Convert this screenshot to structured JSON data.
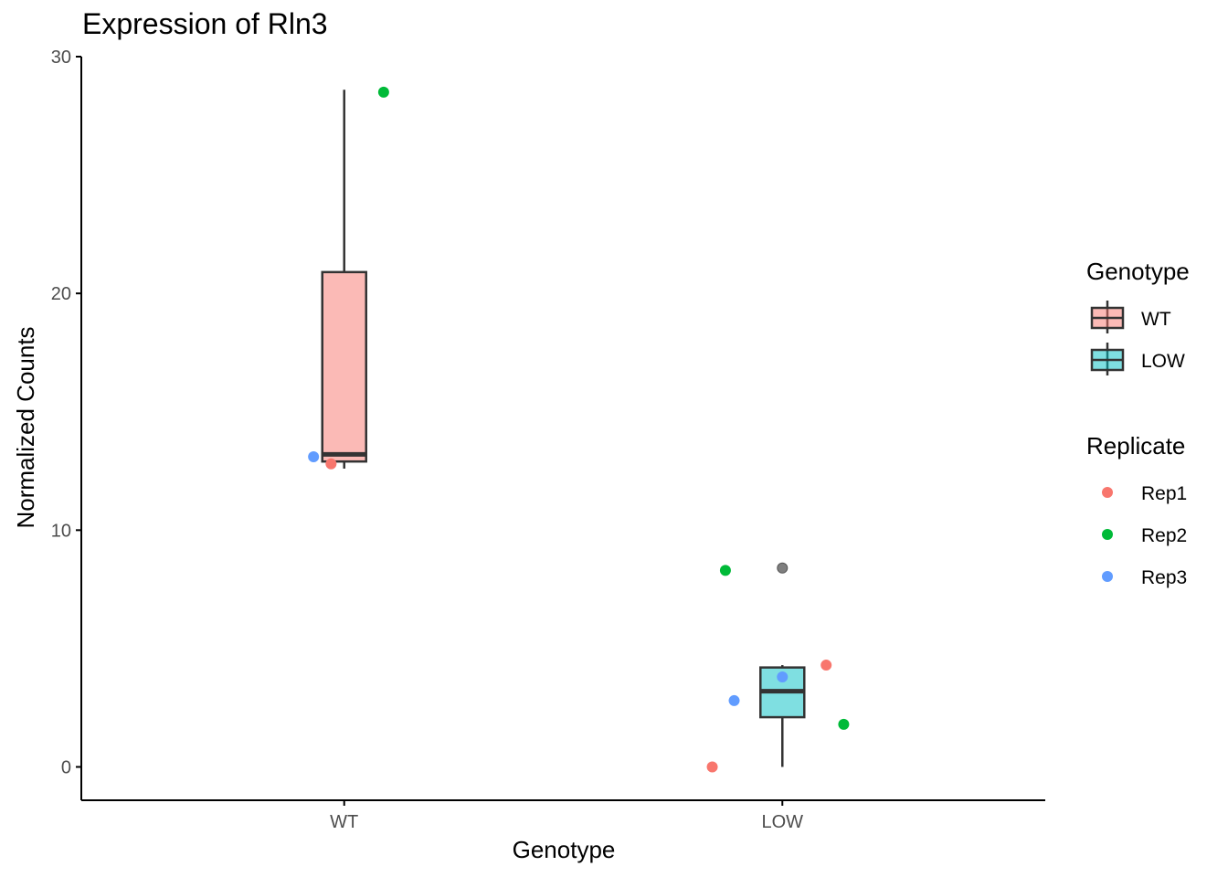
{
  "chart_data": {
    "type": "box",
    "title": "Expression of Rln3",
    "xlabel": "Genotype",
    "ylabel": "Normalized Counts",
    "categories": [
      "WT",
      "LOW"
    ],
    "ylim": [
      -1.4,
      30
    ],
    "yticks": [
      0,
      10,
      20,
      30
    ],
    "grid": false,
    "legend_position": "right",
    "colors": {
      "WT": "#F8766D",
      "LOW": "#00BFC4",
      "Rep1": "#F8766D",
      "Rep2": "#00BA38",
      "Rep3": "#619CFF",
      "outlier": "#7f7f7f"
    },
    "boxes": [
      {
        "category": "WT",
        "min": 12.6,
        "q1": 12.9,
        "median": 13.2,
        "q3": 20.9,
        "max": 28.6,
        "outliers": []
      },
      {
        "category": "LOW",
        "min": 0.0,
        "q1": 2.1,
        "median": 3.2,
        "q3": 4.2,
        "max": 4.3,
        "outliers": [
          8.4
        ]
      }
    ],
    "points": [
      {
        "genotype": "WT",
        "replicate": "Rep1",
        "value": 12.8,
        "jitter": -0.03
      },
      {
        "genotype": "WT",
        "replicate": "Rep2",
        "value": 28.5,
        "jitter": 0.09
      },
      {
        "genotype": "WT",
        "replicate": "Rep3",
        "value": 13.1,
        "jitter": -0.07
      },
      {
        "genotype": "LOW",
        "replicate": "Rep1",
        "value": 0.0,
        "jitter": -0.16
      },
      {
        "genotype": "LOW",
        "replicate": "Rep1",
        "value": 4.3,
        "jitter": 0.1
      },
      {
        "genotype": "LOW",
        "replicate": "Rep2",
        "value": 8.3,
        "jitter": -0.13
      },
      {
        "genotype": "LOW",
        "replicate": "Rep2",
        "value": 1.8,
        "jitter": 0.14
      },
      {
        "genotype": "LOW",
        "replicate": "Rep3",
        "value": 2.8,
        "jitter": -0.11
      },
      {
        "genotype": "LOW",
        "replicate": "Rep3",
        "value": 3.8,
        "jitter": 0.0
      }
    ],
    "legends": [
      {
        "title": "Genotype",
        "kind": "box",
        "entries": [
          "WT",
          "LOW"
        ]
      },
      {
        "title": "Replicate",
        "kind": "point",
        "entries": [
          "Rep1",
          "Rep2",
          "Rep3"
        ]
      }
    ]
  }
}
